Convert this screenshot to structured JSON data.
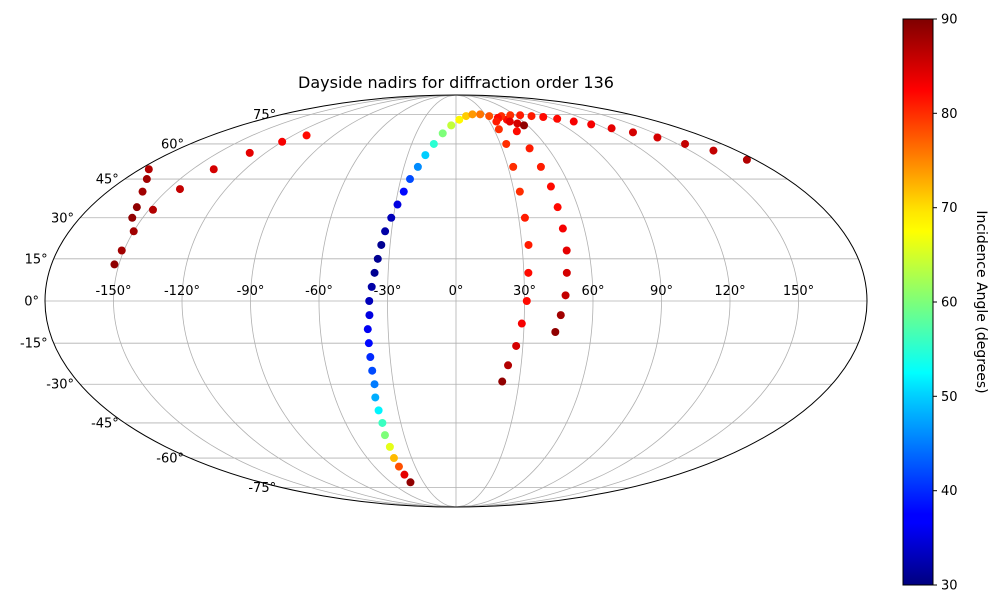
{
  "chart_data": {
    "type": "scatter",
    "projection": "mollweide",
    "title": "Dayside nadirs for diffraction order 136",
    "grid": true,
    "x_ticks": [
      "-150°",
      "-120°",
      "-90°",
      "-60°",
      "-30°",
      "0°",
      "30°",
      "60°",
      "90°",
      "120°",
      "150°"
    ],
    "y_ticks": [
      "-75°",
      "-60°",
      "-45°",
      "-30°",
      "-15°",
      "0°",
      "15°",
      "30°",
      "45°",
      "60°",
      "75°"
    ],
    "colorbar": {
      "label": "Incidence Angle (degrees)",
      "colormap": "jet",
      "min": 30,
      "max": 90,
      "ticks": [
        "30",
        "40",
        "50",
        "60",
        "70",
        "80",
        "90"
      ]
    },
    "series": [
      {
        "points": [
          {
            "lon": -42,
            "lat": -72,
            "inc": 89
          },
          {
            "lon": -42,
            "lat": -68,
            "inc": 84
          },
          {
            "lon": -42,
            "lat": -64,
            "inc": 78
          },
          {
            "lon": -42,
            "lat": -60,
            "inc": 72
          },
          {
            "lon": -41,
            "lat": -55,
            "inc": 66
          },
          {
            "lon": -41,
            "lat": -50,
            "inc": 60
          },
          {
            "lon": -40,
            "lat": -45,
            "inc": 56
          },
          {
            "lon": -40,
            "lat": -40,
            "inc": 52
          },
          {
            "lon": -40,
            "lat": -35,
            "inc": 48
          },
          {
            "lon": -39,
            "lat": -30,
            "inc": 45
          },
          {
            "lon": -39,
            "lat": -25,
            "inc": 42
          },
          {
            "lon": -39,
            "lat": -20,
            "inc": 40
          },
          {
            "lon": -39,
            "lat": -15,
            "inc": 38
          },
          {
            "lon": -39,
            "lat": -10,
            "inc": 36
          },
          {
            "lon": -38,
            "lat": -5,
            "inc": 35
          },
          {
            "lon": -38,
            "lat": 0,
            "inc": 33
          },
          {
            "lon": -37,
            "lat": 5,
            "inc": 32
          },
          {
            "lon": -36,
            "lat": 10,
            "inc": 31
          },
          {
            "lon": -35,
            "lat": 15,
            "inc": 31
          },
          {
            "lon": -34,
            "lat": 20,
            "inc": 31
          },
          {
            "lon": -33,
            "lat": 25,
            "inc": 32
          },
          {
            "lon": -31,
            "lat": 30,
            "inc": 33
          },
          {
            "lon": -29,
            "lat": 35,
            "inc": 35
          },
          {
            "lon": -27,
            "lat": 40,
            "inc": 38
          },
          {
            "lon": -25,
            "lat": 45,
            "inc": 42
          },
          {
            "lon": -22,
            "lat": 50,
            "inc": 46
          },
          {
            "lon": -19,
            "lat": 55,
            "inc": 50
          },
          {
            "lon": -15,
            "lat": 60,
            "inc": 55
          },
          {
            "lon": -10,
            "lat": 65,
            "inc": 60
          },
          {
            "lon": -4,
            "lat": 69,
            "inc": 64
          },
          {
            "lon": 3,
            "lat": 72,
            "inc": 68
          },
          {
            "lon": 10,
            "lat": 74,
            "inc": 71
          },
          {
            "lon": 17,
            "lat": 75,
            "inc": 74
          },
          {
            "lon": 25,
            "lat": 75,
            "inc": 76
          },
          {
            "lon": 33,
            "lat": 74,
            "inc": 78
          },
          {
            "lon": 41,
            "lat": 73,
            "inc": 80
          },
          {
            "lon": 47,
            "lat": 72,
            "inc": 82
          },
          {
            "lon": 53,
            "lat": 70,
            "inc": 85
          },
          {
            "lon": 57,
            "lat": 69,
            "inc": 89
          }
        ]
      },
      {
        "points": [
          {
            "lon": 45,
            "lat": 74,
            "inc": 80
          },
          {
            "lon": 55,
            "lat": 74.5,
            "inc": 80
          },
          {
            "lon": 65,
            "lat": 74.5,
            "inc": 81
          },
          {
            "lon": 75,
            "lat": 74,
            "inc": 81
          },
          {
            "lon": 85,
            "lat": 73.5,
            "inc": 82
          },
          {
            "lon": 95,
            "lat": 72.5,
            "inc": 82
          },
          {
            "lon": 105,
            "lat": 71,
            "inc": 83
          },
          {
            "lon": 115,
            "lat": 69.5,
            "inc": 83
          },
          {
            "lon": 125,
            "lat": 67.5,
            "inc": 84
          },
          {
            "lon": 135,
            "lat": 65.5,
            "inc": 85
          },
          {
            "lon": 145,
            "lat": 63,
            "inc": 85
          },
          {
            "lon": 155,
            "lat": 60,
            "inc": 86
          },
          {
            "lon": 165,
            "lat": 57,
            "inc": 86
          },
          {
            "lon": 175,
            "lat": 53,
            "inc": 87
          },
          {
            "lon": -175,
            "lat": 49,
            "inc": 87
          },
          {
            "lon": -168,
            "lat": 45,
            "inc": 88
          },
          {
            "lon": -162,
            "lat": 40,
            "inc": 88
          },
          {
            "lon": -157,
            "lat": 34,
            "inc": 89
          },
          {
            "lon": -155,
            "lat": 30,
            "inc": 89
          }
        ]
      },
      {
        "points": [
          {
            "lon": 40,
            "lat": 73,
            "inc": 82
          },
          {
            "lon": 36,
            "lat": 71,
            "inc": 81
          },
          {
            "lon": 34,
            "lat": 67,
            "inc": 80
          },
          {
            "lon": 34,
            "lat": 60,
            "inc": 80
          },
          {
            "lon": 33,
            "lat": 50,
            "inc": 80
          },
          {
            "lon": 33,
            "lat": 40,
            "inc": 80
          },
          {
            "lon": 33,
            "lat": 30,
            "inc": 81
          },
          {
            "lon": 33,
            "lat": 20,
            "inc": 81
          },
          {
            "lon": 32,
            "lat": 10,
            "inc": 82
          },
          {
            "lon": 31,
            "lat": 0,
            "inc": 82
          },
          {
            "lon": 29,
            "lat": -8,
            "inc": 83
          },
          {
            "lon": 27,
            "lat": -16,
            "inc": 85
          },
          {
            "lon": 24,
            "lat": -23,
            "inc": 87
          },
          {
            "lon": 22,
            "lat": -29,
            "inc": 89
          },
          {
            "lon": -110,
            "lat": 64,
            "inc": 82
          },
          {
            "lon": -120,
            "lat": 61,
            "inc": 83
          },
          {
            "lon": -130,
            "lat": 56,
            "inc": 84
          },
          {
            "lon": -138,
            "lat": 49,
            "inc": 85
          },
          {
            "lon": -144,
            "lat": 41,
            "inc": 86
          },
          {
            "lon": -148,
            "lat": 33,
            "inc": 87
          },
          {
            "lon": -150,
            "lat": 25,
            "inc": 88
          },
          {
            "lon": -151,
            "lat": 18,
            "inc": 88
          },
          {
            "lon": -152,
            "lat": 13,
            "inc": 89
          }
        ]
      },
      {
        "points": [
          {
            "lon": 48,
            "lat": 71,
            "inc": 84
          },
          {
            "lon": 47,
            "lat": 66,
            "inc": 82
          },
          {
            "lon": 48,
            "lat": 58,
            "inc": 81
          },
          {
            "lon": 49,
            "lat": 50,
            "inc": 81
          },
          {
            "lon": 50,
            "lat": 42,
            "inc": 82
          },
          {
            "lon": 50,
            "lat": 34,
            "inc": 82
          },
          {
            "lon": 50,
            "lat": 26,
            "inc": 83
          },
          {
            "lon": 50,
            "lat": 18,
            "inc": 84
          },
          {
            "lon": 49,
            "lat": 10,
            "inc": 85
          },
          {
            "lon": 48,
            "lat": 2,
            "inc": 86
          },
          {
            "lon": 46,
            "lat": -5,
            "inc": 88
          },
          {
            "lon": 44,
            "lat": -11,
            "inc": 89
          }
        ]
      }
    ]
  }
}
